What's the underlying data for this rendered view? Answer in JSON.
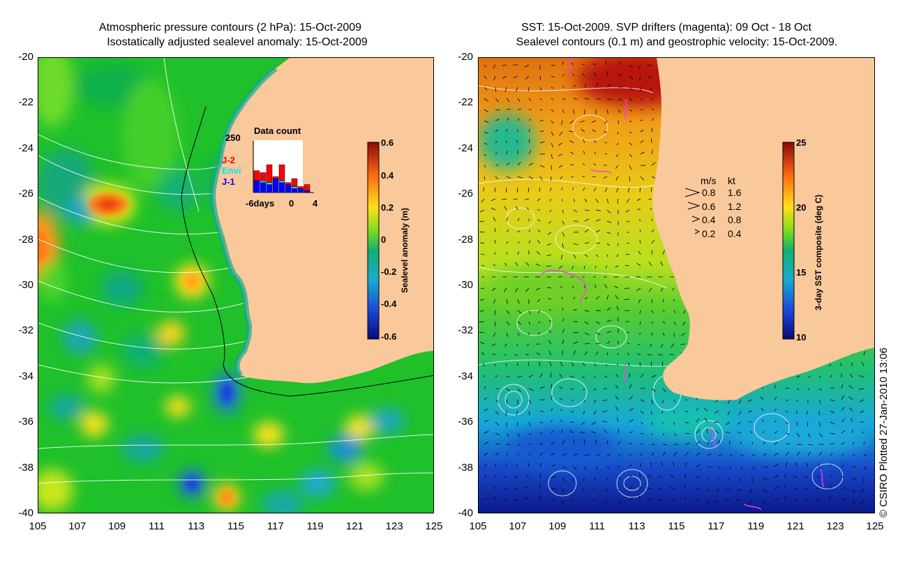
{
  "left_title": {
    "line1": "Atmospheric pressure contours (2 hPa): 15-Oct-2009",
    "line2": "Isostatically adjusted sealevel anomaly: 15-Oct-2009"
  },
  "right_title": {
    "line1": "SST: 15-Oct-2009. SVP drifters (magenta): 09 Oct - 18 Oct",
    "line2": "Sealevel contours (0.1 m) and geostrophic velocity: 15-Oct-2009."
  },
  "axes": {
    "lat_ticks": [
      "-20",
      "-22",
      "-24",
      "-26",
      "-28",
      "-30",
      "-32",
      "-34",
      "-36",
      "-38",
      "-40"
    ],
    "lon_ticks": [
      "105",
      "107",
      "109",
      "111",
      "113",
      "115",
      "117",
      "119",
      "121",
      "123",
      "125"
    ]
  },
  "left_colorbar": {
    "label": "Sealevel anomaly (m)",
    "ticks": [
      "0.6",
      "0.4",
      "0.2",
      "0",
      "-0.2",
      "-0.4",
      "-0.6"
    ]
  },
  "right_colorbar": {
    "label": "3-day SST composite (deg C)",
    "ticks": [
      "25",
      "20",
      "15",
      "10"
    ]
  },
  "data_count": {
    "title": "Data count",
    "ymax": "250",
    "xlabel_left": "-6days",
    "xlabel_mid": "0",
    "xlabel_right": "4",
    "legend": [
      {
        "label": "J-2",
        "color": "#ff0000"
      },
      {
        "label": "Envi",
        "color": "#00e5ff"
      },
      {
        "label": "J-1",
        "color": "#0000ff"
      }
    ]
  },
  "velocity_legend": {
    "header_ms": "m/s",
    "header_kt": "kt",
    "rows": [
      {
        "ms": "0.8",
        "kt": "1.6"
      },
      {
        "ms": "0.6",
        "kt": "1.2"
      },
      {
        "ms": "0.4",
        "kt": "0.8"
      },
      {
        "ms": "0.2",
        "kt": "0.4"
      }
    ]
  },
  "credit": "© CSIRO Plotted 27-Jan-2010 13:06",
  "colors": {
    "land": "#f9c89b",
    "ocean_mid": "#22c022",
    "contour": "#ffffff",
    "drifter": "#ff33ff"
  }
}
